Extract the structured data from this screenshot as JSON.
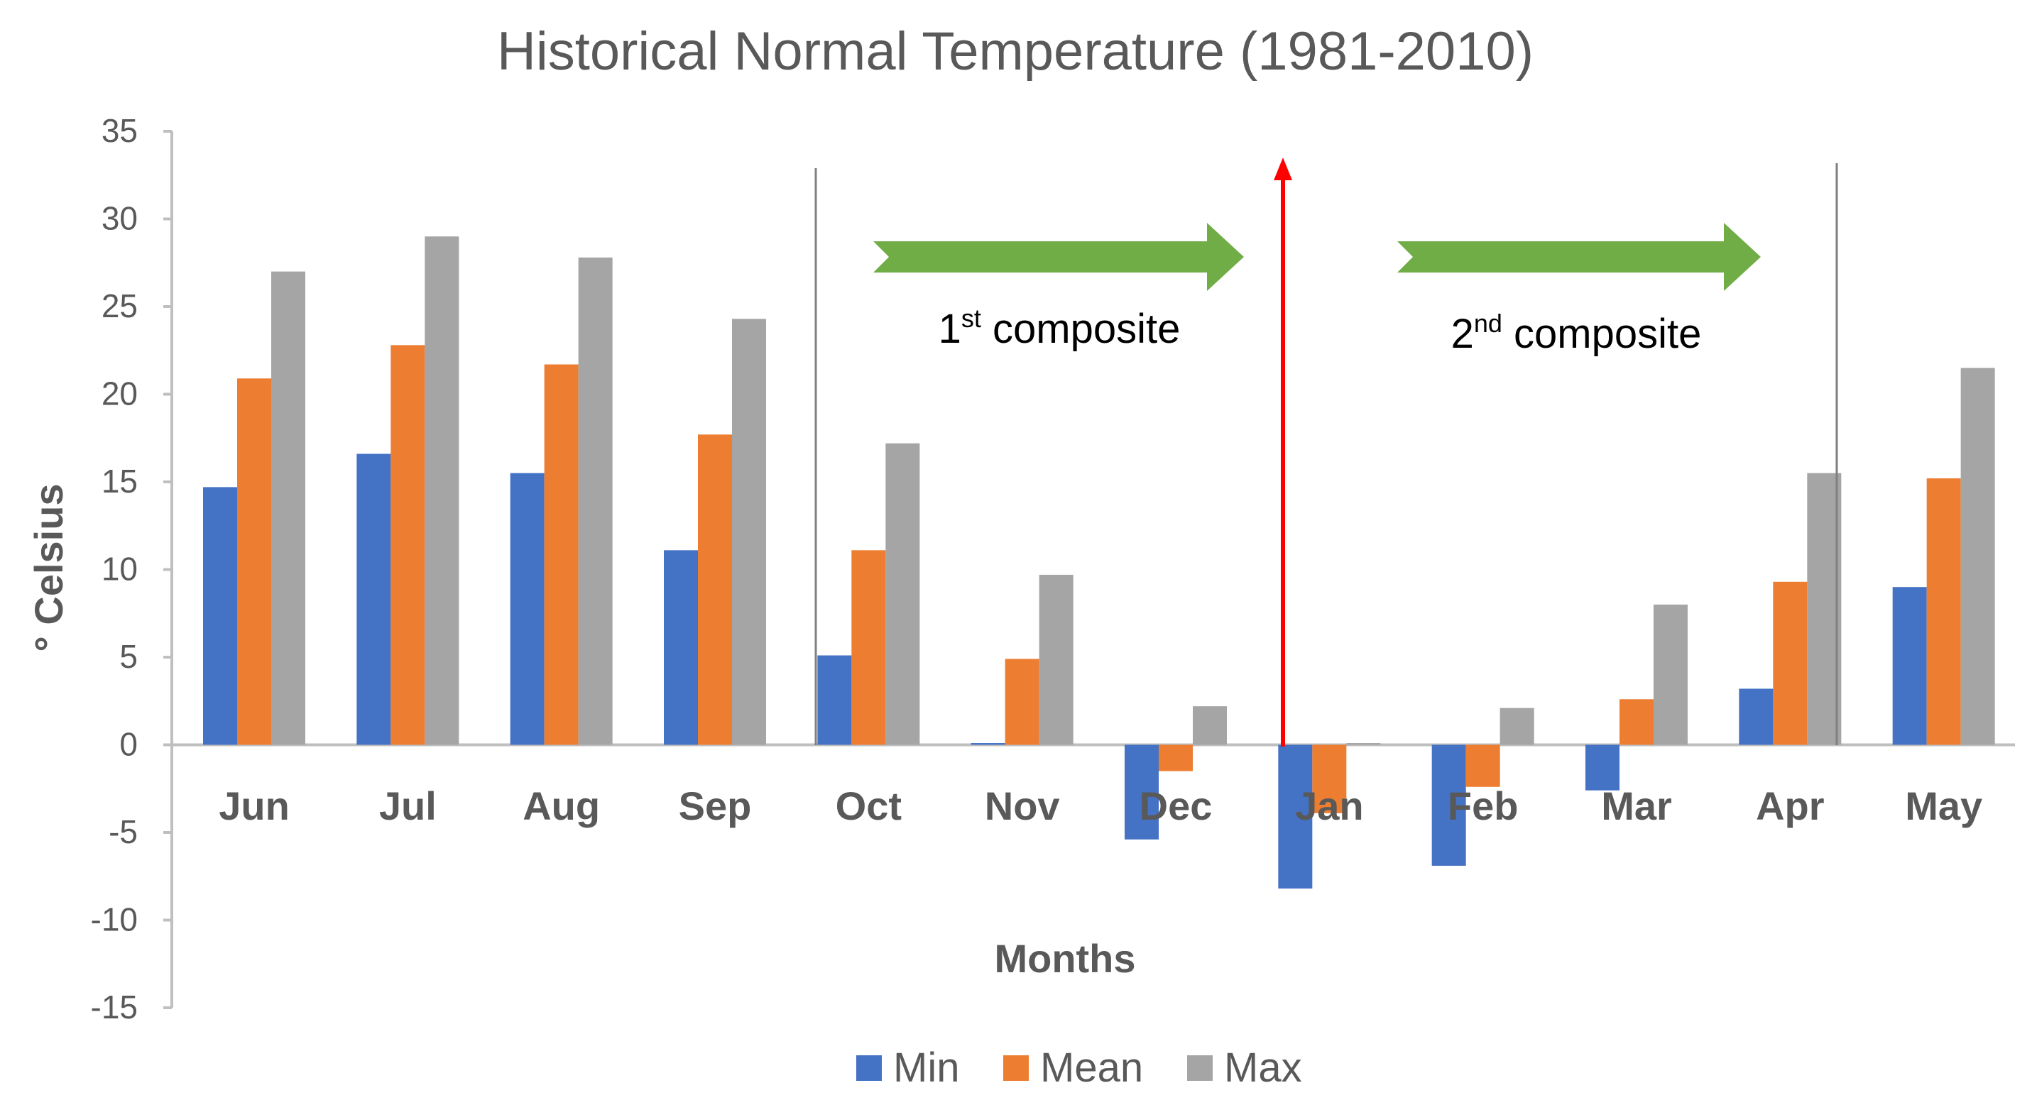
{
  "chart_data": {
    "type": "bar",
    "title": "Historical Normal Temperature (1981-2010)",
    "xlabel": "Months",
    "ylabel": "° Celsius",
    "ylim": [
      -15,
      35
    ],
    "yticks": [
      35,
      30,
      25,
      20,
      15,
      10,
      5,
      0,
      -5,
      -10,
      -15
    ],
    "categories": [
      "Jun",
      "Jul",
      "Aug",
      "Sep",
      "Oct",
      "Nov",
      "Dec",
      "Jan",
      "Feb",
      "Mar",
      "Apr",
      "May"
    ],
    "series": [
      {
        "name": "Min",
        "color": "#4472C4",
        "values": [
          14.7,
          16.6,
          15.5,
          11.1,
          5.1,
          0.1,
          -5.4,
          -8.2,
          -6.9,
          -2.6,
          3.2,
          9.0
        ]
      },
      {
        "name": "Mean",
        "color": "#ED7D31",
        "values": [
          20.9,
          22.8,
          21.7,
          17.7,
          11.1,
          4.9,
          -1.5,
          -3.9,
          -2.4,
          2.6,
          9.3,
          15.2
        ]
      },
      {
        "name": "Max",
        "color": "#A5A5A5",
        "values": [
          27.0,
          29.0,
          27.8,
          24.3,
          17.2,
          9.7,
          2.2,
          0.1,
          2.1,
          8.0,
          15.5,
          21.5
        ]
      }
    ],
    "grid": false,
    "legend": "bottom",
    "annotations": {
      "composite1": {
        "prefix": "1",
        "sup": "st",
        "suffix": " composite",
        "arrow_color": "#70AD47"
      },
      "composite2": {
        "prefix": "2",
        "sup": "nd",
        "suffix": " composite",
        "arrow_color": "#70AD47"
      },
      "divider_arrow_color": "#FF0000"
    }
  }
}
